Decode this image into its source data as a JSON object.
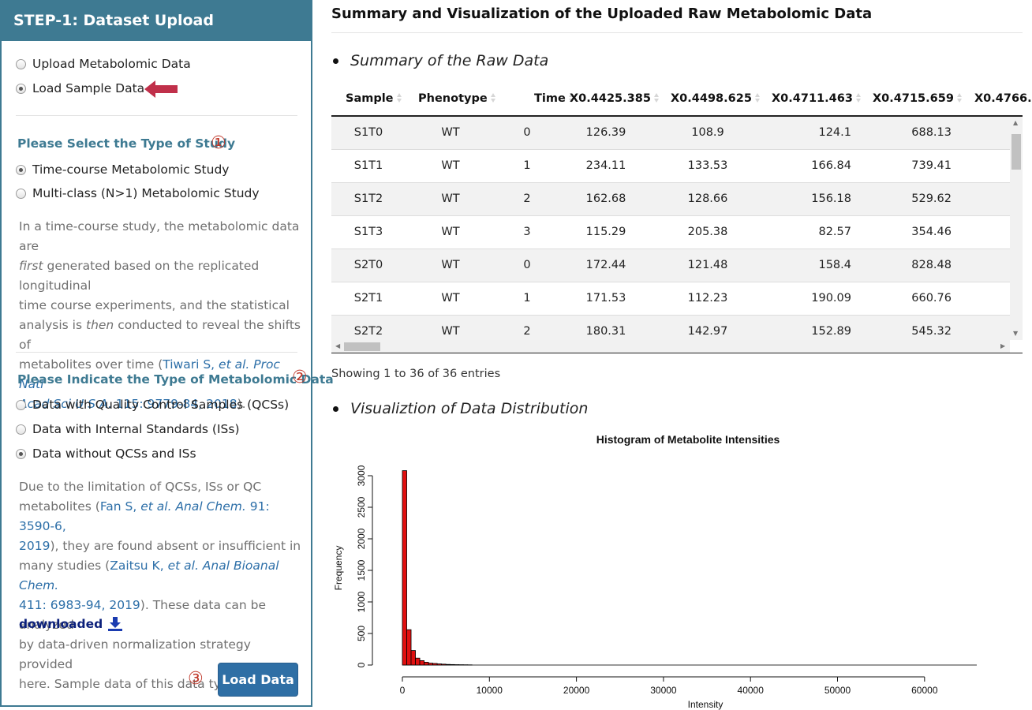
{
  "sidebar": {
    "header": "STEP-1: Dataset Upload",
    "source_options": [
      {
        "label": "Upload Metabolomic Data",
        "selected": false
      },
      {
        "label": "Load Sample Data",
        "selected": true
      }
    ],
    "study_type": {
      "title": "Please Select the Type of Study",
      "marker": "①",
      "options": [
        {
          "label": "Time-course Metabolomic Study",
          "selected": true
        },
        {
          "label": "Multi-class (N>1) Metabolomic Study",
          "selected": false
        }
      ],
      "desc_1": "In a time-course study, the metabolomic data are",
      "desc_2_em": "first",
      "desc_2": " generated based on the replicated longitudinal",
      "desc_3": "time course experiments, and the statistical",
      "desc_4a": "analysis is ",
      "desc_4_em": "then",
      "desc_4b": " conducted to reveal the shifts of",
      "desc_5": "metabolites over time (",
      "cite_a": "Tiwari S, ",
      "cite_a_em": "et al. Proc Natl",
      "cite_b_em": "Acad Sci U S A.",
      "cite_b": " 115: 9779-84, 2018",
      "desc_6": ")."
    },
    "data_type": {
      "title": "Please Indicate the Type of Metabolomic Data",
      "marker": "②",
      "options": [
        {
          "label": "Data with Quality Control Samples (QCSs)",
          "selected": false
        },
        {
          "label": "Data with Internal Standards (ISs)",
          "selected": false
        },
        {
          "label": "Data without QCSs and ISs",
          "selected": true
        }
      ],
      "p1": "Due to the limitation of QCSs, ISs or QC",
      "p2": "metabolites (",
      "c1a": "Fan S, ",
      "c1a_em": "et al. Anal Chem.",
      "c1b": " 91: 3590-6,",
      "c1c": "2019",
      "p3": "), they are found absent or insufficient in",
      "p4": "many studies (",
      "c2a": "Zaitsu K, ",
      "c2a_em": "et al. Anal Bioanal Chem.",
      "c2b": "411: 6983-94, 2019",
      "p5": "). These data can be analyzed",
      "p6": "by data-driven normalization strategy provided",
      "p7": "here. Sample data of this data type can be",
      "download_link": "downloaded"
    },
    "load_marker": "③",
    "load_button": "Load Data",
    "colors": {
      "header_bg": "#3e7a92",
      "accent_red": "#c0392b",
      "arrow": "#c0304a",
      "button": "#2f6fa5"
    }
  },
  "main": {
    "title": "Summary and Visualization of the Uploaded Raw Metabolomic Data",
    "summary_heading": "Summary of the Raw Data",
    "viz_heading": "Visualiztion of Data Distribution",
    "table": {
      "columns": [
        "Sample",
        "Phenotype",
        "Time",
        "X0.4425.385",
        "X0.4498.625",
        "X0.4711.463",
        "X0.4715.659",
        "X0.4766."
      ],
      "rows": [
        [
          "S1T0",
          "WT",
          "0",
          "126.39",
          "108.9",
          "124.1",
          "688.13"
        ],
        [
          "S1T1",
          "WT",
          "1",
          "234.11",
          "133.53",
          "166.84",
          "739.41"
        ],
        [
          "S1T2",
          "WT",
          "2",
          "162.68",
          "128.66",
          "156.18",
          "529.62"
        ],
        [
          "S1T3",
          "WT",
          "3",
          "115.29",
          "205.38",
          "82.57",
          "354.46"
        ],
        [
          "S2T0",
          "WT",
          "0",
          "172.44",
          "121.48",
          "158.4",
          "828.48"
        ],
        [
          "S2T1",
          "WT",
          "1",
          "171.53",
          "112.23",
          "190.09",
          "660.76"
        ],
        [
          "S2T2",
          "WT",
          "2",
          "180.31",
          "142.97",
          "152.89",
          "545.32"
        ]
      ]
    },
    "entries_info": "Showing 1 to 36 of 36 entries"
  },
  "chart_data": {
    "type": "bar",
    "title": "Histogram of Metabolite Intensities",
    "xlabel": "Intensity",
    "ylabel": "Frequency",
    "xlim": [
      0,
      66000
    ],
    "ylim": [
      0,
      3100
    ],
    "x_ticks": [
      0,
      10000,
      20000,
      30000,
      40000,
      50000,
      60000
    ],
    "y_ticks": [
      0,
      500,
      1000,
      1500,
      2000,
      2500,
      3000
    ],
    "bin_width": 500,
    "bin_starts": [
      0,
      500,
      1000,
      1500,
      2000,
      2500,
      3000,
      3500,
      4000,
      4500,
      5000,
      5500,
      6000,
      6500,
      7000,
      7500
    ],
    "values": [
      3080,
      560,
      230,
      110,
      70,
      45,
      30,
      25,
      18,
      14,
      10,
      8,
      6,
      5,
      4,
      3
    ],
    "color": "#e01010"
  }
}
